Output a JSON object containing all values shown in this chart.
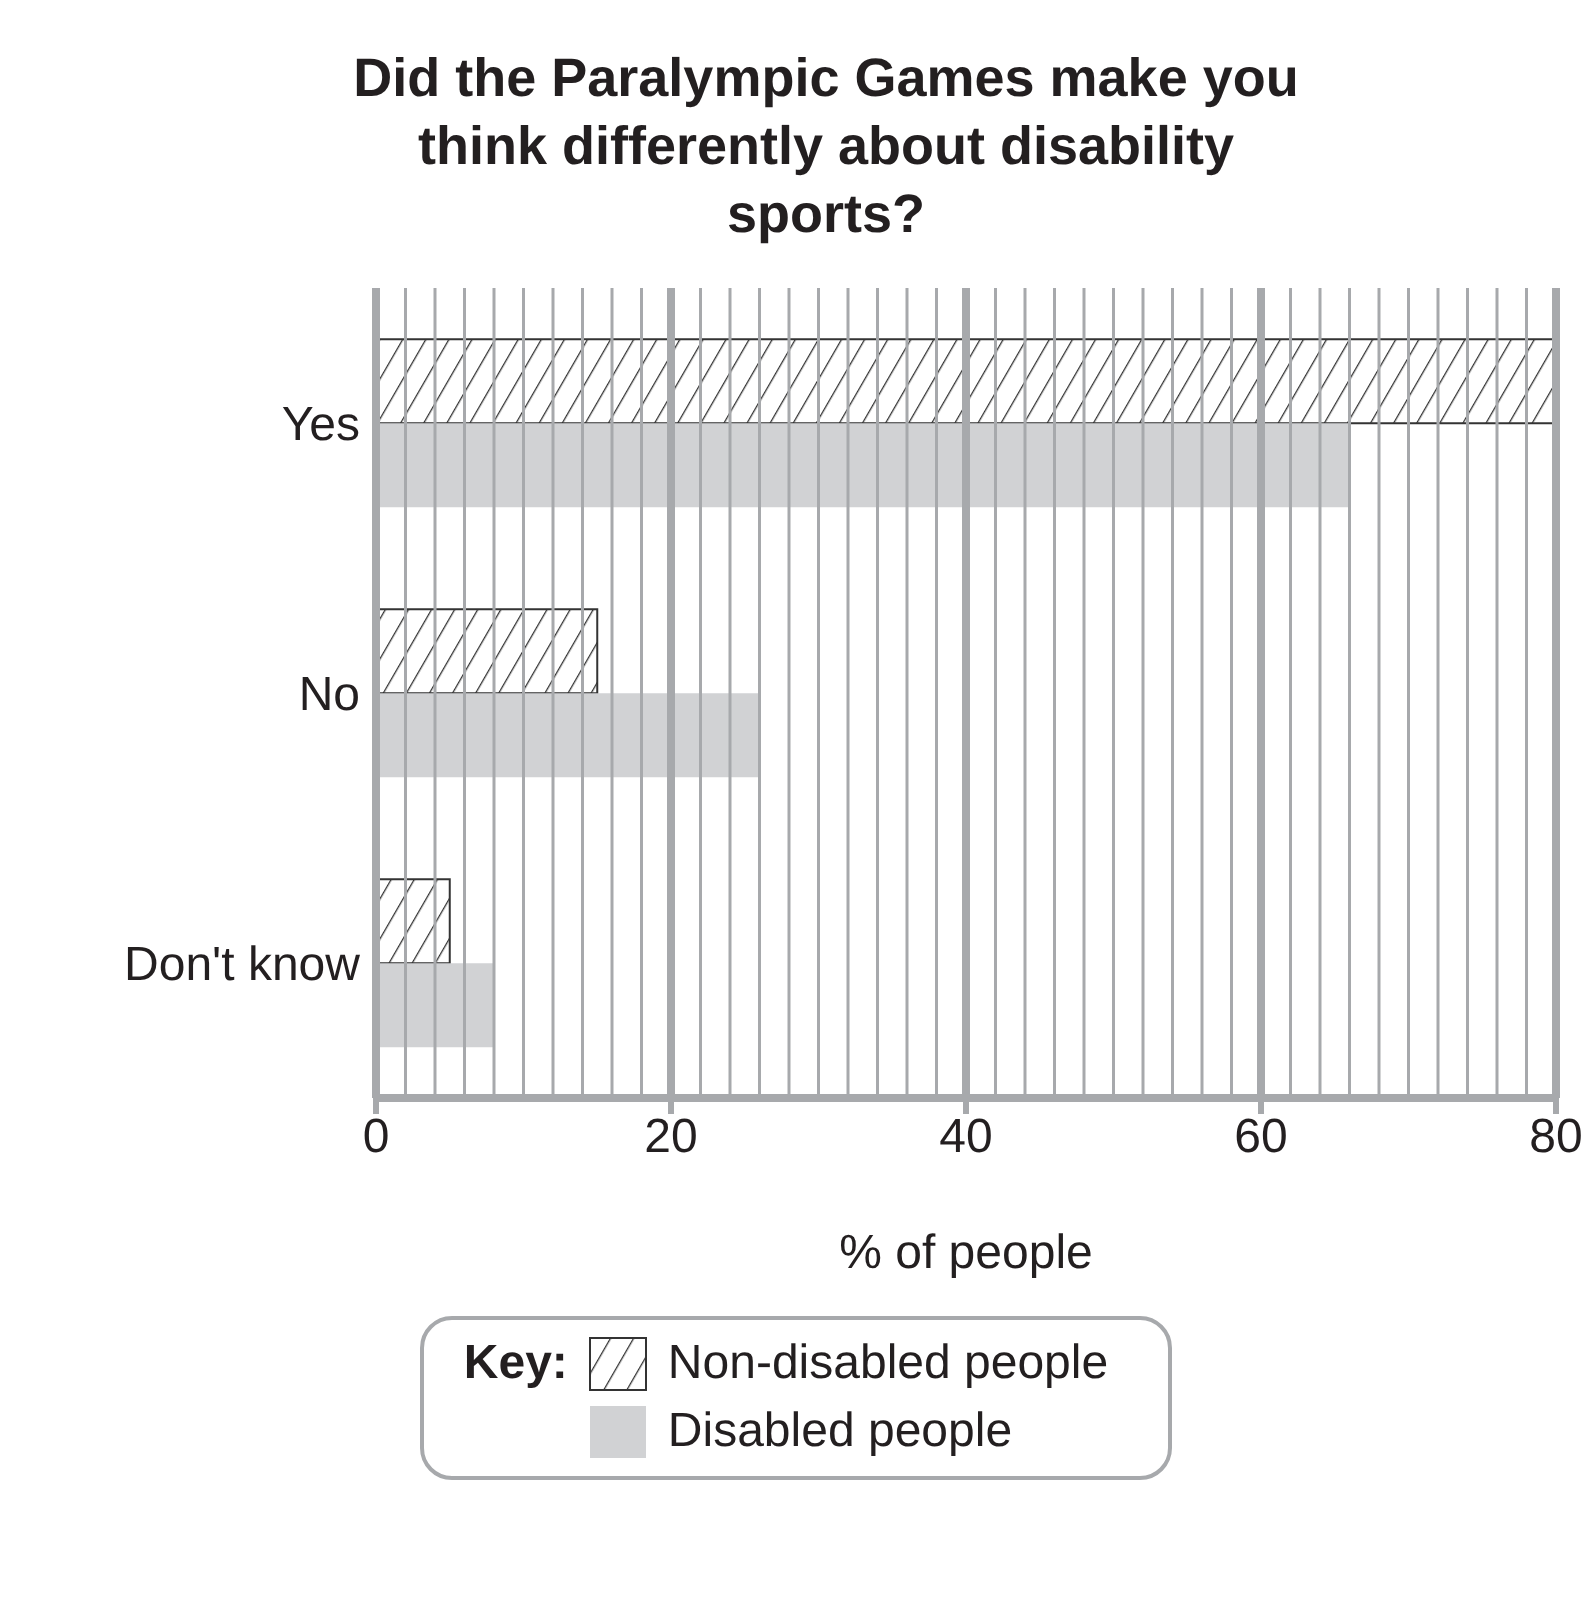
{
  "chart_data": {
    "type": "bar",
    "orientation": "horizontal",
    "title": "Did the Paralympic Games make you think differently about disability sports?",
    "xlabel": "% of people",
    "legend_title": "Key:",
    "categories": [
      "Yes",
      "No",
      "Don't know"
    ],
    "series": [
      {
        "name": "Non-disabled people",
        "color": "#333333",
        "values": [
          80,
          15,
          5
        ]
      },
      {
        "name": "Disabled people",
        "color": "#d1d2d4",
        "values": [
          66,
          26,
          8
        ]
      }
    ],
    "xlim": [
      0,
      80
    ],
    "xticks": [
      0,
      {
        "value": 2,
        "label": null
      },
      {
        "value": 4,
        "label": null
      },
      {
        "value": 6,
        "label": null
      },
      {
        "value": 8,
        "label": null
      },
      {
        "value": 10,
        "label": null
      },
      {
        "value": 12,
        "label": null
      },
      {
        "value": 14,
        "label": null
      },
      {
        "value": 16,
        "label": null
      },
      {
        "value": 18,
        "label": null
      },
      20,
      {
        "value": 22,
        "label": null
      },
      {
        "value": 24,
        "label": null
      },
      {
        "value": 26,
        "label": null
      },
      {
        "value": 28,
        "label": null
      },
      {
        "value": 30,
        "label": null
      },
      {
        "value": 32,
        "label": null
      },
      {
        "value": 34,
        "label": null
      },
      {
        "value": 36,
        "label": null
      },
      {
        "value": 38,
        "label": null
      },
      40,
      {
        "value": 42,
        "label": null
      },
      {
        "value": 44,
        "label": null
      },
      {
        "value": 46,
        "label": null
      },
      {
        "value": 48,
        "label": null
      },
      {
        "value": 50,
        "label": null
      },
      {
        "value": 52,
        "label": null
      },
      {
        "value": 54,
        "label": null
      },
      {
        "value": 56,
        "label": null
      },
      {
        "value": 58,
        "label": null
      },
      60,
      {
        "value": 62,
        "label": null
      },
      {
        "value": 64,
        "label": null
      },
      {
        "value": 66,
        "label": null
      },
      {
        "value": 68,
        "label": null
      },
      {
        "value": 70,
        "label": null
      },
      {
        "value": 72,
        "label": null
      },
      {
        "value": 74,
        "label": null
      },
      {
        "value": 76,
        "label": null
      },
      {
        "value": 78,
        "label": null
      },
      80
    ],
    "grid": "x",
    "legend": "bottom"
  }
}
